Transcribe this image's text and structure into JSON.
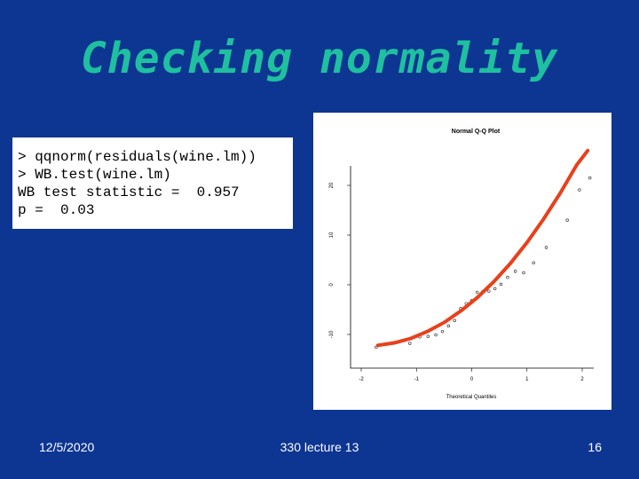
{
  "slide": {
    "title": "Checking normality",
    "code_lines": [
      "> qqnorm(residuals(wine.lm))",
      "> WB.test(wine.lm)",
      "WB test statistic =  0.957",
      "p =  0.03"
    ],
    "footer": {
      "date": "12/5/2020",
      "course": "330 lecture 13",
      "page": "16"
    },
    "colors": {
      "background": "#0d3592",
      "title": "#1ec0a0",
      "curve": "#e8401c"
    }
  },
  "chart_data": {
    "type": "scatter",
    "title": "Normal Q-Q Plot",
    "xlabel": "Theoretical Quantiles",
    "ylabel": "",
    "xlim": [
      -2.1,
      2.1
    ],
    "ylim": [
      -13,
      25
    ],
    "xticks": [
      -2,
      -1,
      0,
      1,
      2
    ],
    "xtick_labels": [
      "-2",
      "-1",
      "0",
      "1",
      "2"
    ],
    "yticks": [
      -10,
      0,
      10,
      20
    ],
    "ytick_labels": [
      "-10",
      "0",
      "10",
      "20"
    ],
    "grid": false,
    "points": [
      {
        "x": -1.73,
        "y": -12.6
      },
      {
        "x": -1.35,
        "y": -11.6
      },
      {
        "x": -1.12,
        "y": -11.8
      },
      {
        "x": -0.94,
        "y": -10.5
      },
      {
        "x": -0.79,
        "y": -10.4
      },
      {
        "x": -0.65,
        "y": -10.1
      },
      {
        "x": -0.53,
        "y": -9.4
      },
      {
        "x": -0.42,
        "y": -8.3
      },
      {
        "x": -0.31,
        "y": -7.2
      },
      {
        "x": -0.2,
        "y": -4.8
      },
      {
        "x": -0.1,
        "y": -3.8
      },
      {
        "x": 0.0,
        "y": -3.2
      },
      {
        "x": 0.1,
        "y": -1.5
      },
      {
        "x": 0.2,
        "y": -1.4
      },
      {
        "x": 0.31,
        "y": -1.3
      },
      {
        "x": 0.42,
        "y": -0.8
      },
      {
        "x": 0.53,
        "y": 0.1
      },
      {
        "x": 0.65,
        "y": 1.5
      },
      {
        "x": 0.79,
        "y": 2.7
      },
      {
        "x": 0.94,
        "y": 2.4
      },
      {
        "x": 1.12,
        "y": 4.4
      },
      {
        "x": 1.35,
        "y": 7.5
      },
      {
        "x": 1.73,
        "y": 13.0
      },
      {
        "x": 1.95,
        "y": 19.1
      },
      {
        "x": 2.14,
        "y": 21.5
      }
    ],
    "overlay_curve": {
      "x": [
        -1.7,
        -1.4,
        -1.1,
        -0.8,
        -0.5,
        -0.2,
        0.1,
        0.4,
        0.7,
        1.0,
        1.3,
        1.6,
        1.9,
        2.1
      ],
      "y": [
        -12.2,
        -11.7,
        -10.8,
        -9.4,
        -7.6,
        -5.3,
        -2.6,
        0.6,
        4.3,
        8.5,
        13.2,
        18.4,
        24.1,
        27.0
      ]
    }
  }
}
